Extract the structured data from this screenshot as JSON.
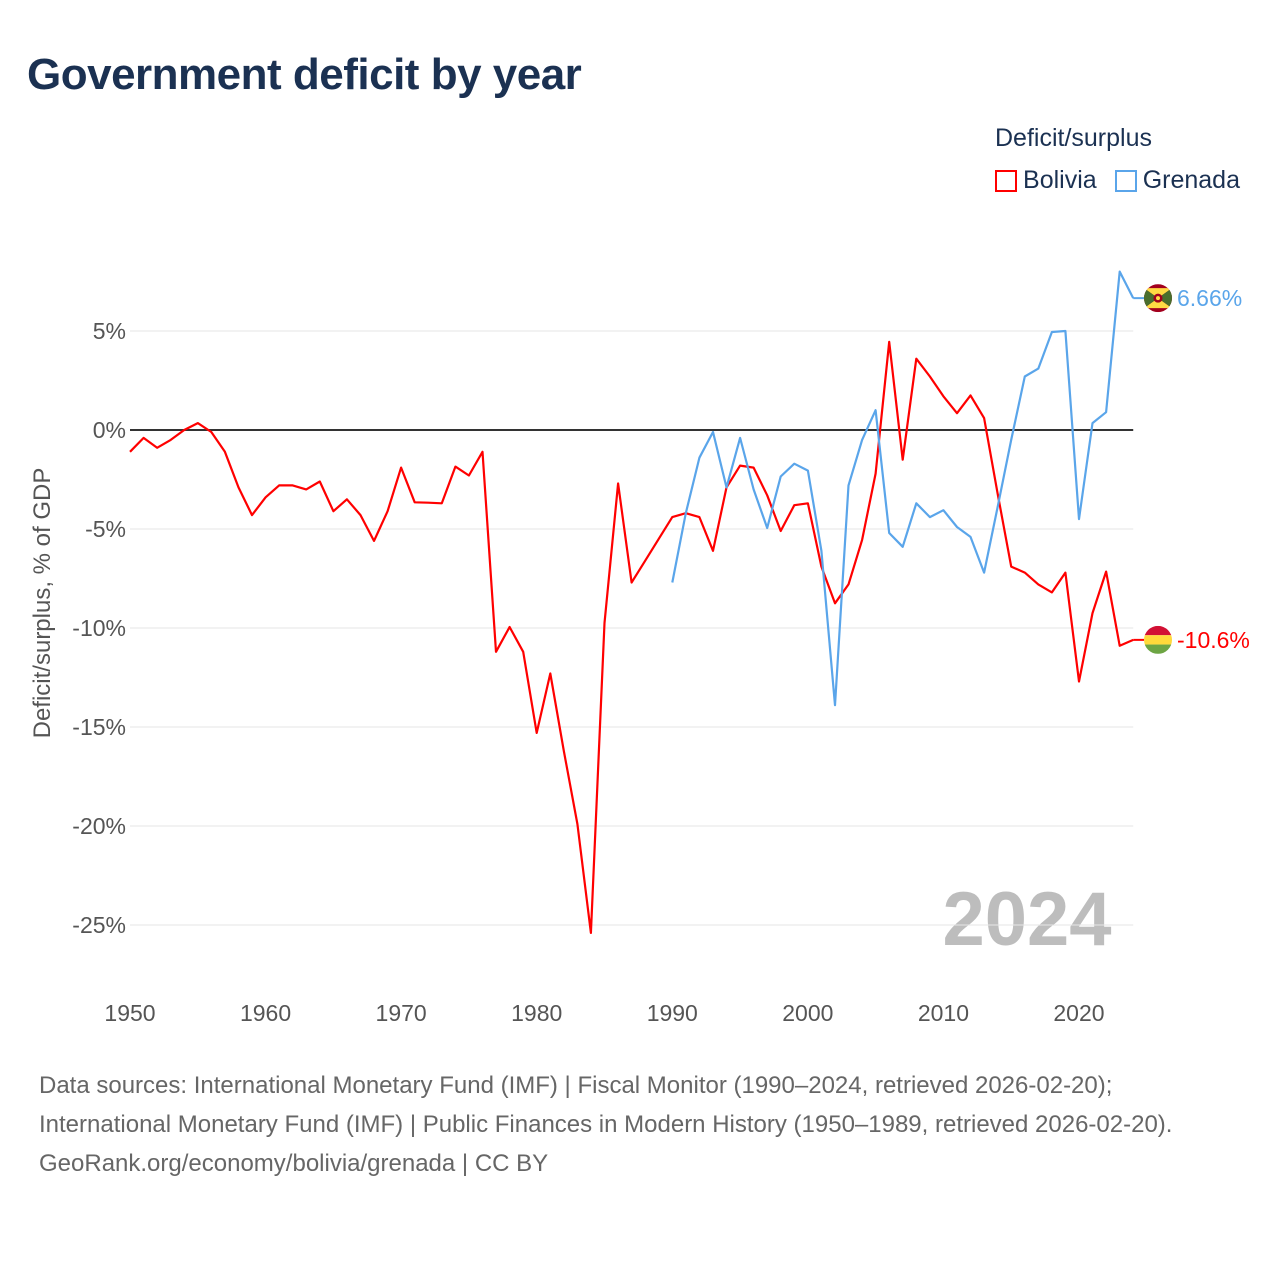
{
  "title": "Government deficit by year",
  "legend": {
    "title": "Deficit/surplus",
    "items": [
      {
        "label": "Bolivia",
        "color": "#ff0000"
      },
      {
        "label": "Grenada",
        "color": "#5aa5ea"
      }
    ]
  },
  "year_watermark": "2024",
  "footer": {
    "sources": "Data sources: International Monetary Fund (IMF) | Fiscal Monitor (1990–2024, retrieved 2026-02-20); International Monetary Fund (IMF) | Public Finances in Modern History (1950–1989, retrieved 2026-02-20).",
    "credit": "GeoRank.org/economy/bolivia/grenada | CC BY"
  },
  "chart_data": {
    "type": "line",
    "title": "Government deficit by year",
    "xlabel": "",
    "ylabel": "Deficit/surplus, % of GDP",
    "xlim": [
      1950,
      2024
    ],
    "ylim": [
      -25.5,
      8
    ],
    "x_ticks": [
      "1950",
      "1960",
      "1970",
      "1980",
      "1990",
      "2000",
      "2010",
      "2020"
    ],
    "y_ticks": [
      {
        "v": 5,
        "label": "5%"
      },
      {
        "v": 0,
        "label": "0%"
      },
      {
        "v": -5,
        "label": "-5%"
      },
      {
        "v": -10,
        "label": "-10%"
      },
      {
        "v": -15,
        "label": "-15%"
      },
      {
        "v": -20,
        "label": "-20%"
      },
      {
        "v": -25,
        "label": "-25%"
      }
    ],
    "grid": true,
    "legend_position": "top-right",
    "series": [
      {
        "name": "Bolivia",
        "color": "#ff0000",
        "start_year": 1950,
        "end_label": "-10.6%",
        "values": [
          -1.1,
          -0.4,
          -0.9,
          -0.5,
          0,
          0.35,
          -0.1,
          -1.1,
          -2.9,
          -4.3,
          -3.4,
          -2.8,
          -2.8,
          -3.0,
          -2.6,
          -4.1,
          -3.5,
          -4.3,
          -5.6,
          -4.1,
          -1.9,
          -3.65,
          -3.67,
          -3.7,
          -1.85,
          -2.3,
          -1.1,
          -11.2,
          -9.95,
          -11.2,
          -15.3,
          -12.3,
          -16.2,
          -19.9,
          -25.4,
          -9.75,
          -2.7,
          -7.7,
          -6.6,
          -5.5,
          -4.4,
          -4.2,
          -4.4,
          -6.1,
          -2.9,
          -1.8,
          -1.9,
          -3.3,
          -5.1,
          -3.8,
          -3.7,
          -6.9,
          -8.75,
          -7.8,
          -5.55,
          -2.2,
          4.45,
          -1.5,
          3.6,
          2.7,
          1.7,
          0.85,
          1.75,
          0.6,
          -3.2,
          -6.9,
          -7.2,
          -7.8,
          -8.2,
          -7.2,
          -12.7,
          -9.25,
          -7.15,
          -10.9,
          -10.6
        ]
      },
      {
        "name": "Grenada",
        "color": "#5aa5ea",
        "start_year": 1990,
        "end_label": "6.66%",
        "values": [
          -7.7,
          -4.2,
          -1.4,
          -0.1,
          -2.9,
          -0.4,
          -3.0,
          -4.95,
          -2.35,
          -1.7,
          -2.05,
          -6.1,
          -13.9,
          -2.8,
          -0.5,
          1.0,
          -5.2,
          -5.9,
          -3.7,
          -4.4,
          -4.05,
          -4.9,
          -5.4,
          -7.2,
          -3.9,
          -0.5,
          2.7,
          3.1,
          4.95,
          5.0,
          -4.5,
          0.35,
          0.9,
          8.0,
          6.66
        ]
      }
    ]
  }
}
